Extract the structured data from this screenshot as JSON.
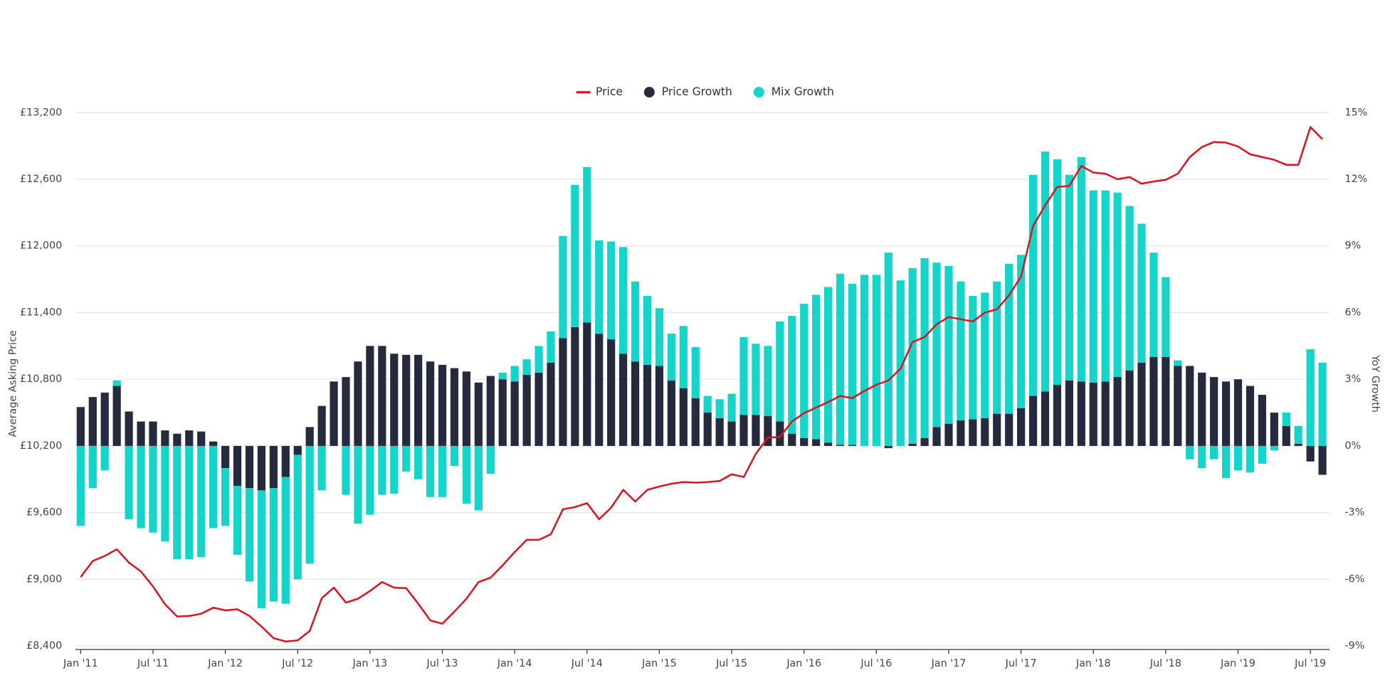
{
  "chart_data": {
    "type": "bar",
    "stacked": true,
    "y_label": "Average Asking Price",
    "y2_label": "YoY Growth",
    "grid": true,
    "legend": "top",
    "categories": [
      "Jan '11",
      null,
      null,
      null,
      null,
      null,
      "Jul '11",
      null,
      null,
      null,
      null,
      null,
      "Jan '12",
      null,
      null,
      null,
      null,
      null,
      "Jul '12",
      null,
      null,
      null,
      null,
      null,
      "Jan '13",
      null,
      null,
      null,
      null,
      null,
      "Jul '13",
      null,
      null,
      null,
      null,
      null,
      "Jan '14",
      null,
      null,
      null,
      null,
      null,
      "Jul '14",
      null,
      null,
      null,
      null,
      null,
      "Jan '15",
      null,
      null,
      null,
      null,
      null,
      "Jul '15",
      null,
      null,
      null,
      null,
      null,
      "Jan '16",
      null,
      null,
      null,
      null,
      null,
      "Jul '16",
      null,
      null,
      null,
      null,
      null,
      "Jan '17",
      null,
      null,
      null,
      null,
      null,
      "Jul '17",
      null,
      null,
      null,
      null,
      null,
      "Jan '18",
      null,
      null,
      null,
      null,
      null,
      "Jul '18",
      null,
      null,
      null,
      null,
      null,
      "Jan '19",
      null,
      null,
      null,
      null,
      null,
      "Jul '19",
      null
    ],
    "series": [
      {
        "name": "Price",
        "type": "line",
        "axis": "y",
        "color": "#e0101e",
        "values": [
          9020,
          9165,
          9210,
          9270,
          9150,
          9070,
          8935,
          8775,
          8665,
          8670,
          8690,
          8745,
          8720,
          8730,
          8670,
          8575,
          8470,
          8440,
          8450,
          8535,
          8830,
          8925,
          8790,
          8825,
          8895,
          8975,
          8925,
          8920,
          8780,
          8630,
          8600,
          8710,
          8825,
          8975,
          9015,
          9125,
          9245,
          9355,
          9355,
          9405,
          9630,
          9650,
          9685,
          9540,
          9645,
          9805,
          9700,
          9805,
          9835,
          9860,
          9875,
          9870,
          9875,
          9885,
          9945,
          9920,
          10130,
          10275,
          10280,
          10420,
          10495,
          10545,
          10595,
          10650,
          10630,
          10695,
          10750,
          10790,
          10895,
          11135,
          11180,
          11295,
          11360,
          11340,
          11320,
          11400,
          11430,
          11555,
          11725,
          12180,
          12365,
          12530,
          12540,
          12720,
          12660,
          12650,
          12600,
          12620,
          12560,
          12580,
          12595,
          12650,
          12800,
          12890,
          12935,
          12930,
          12895,
          12825,
          12800,
          12775,
          12730,
          12730,
          13070,
          12960
        ]
      },
      {
        "name": "Price Growth",
        "type": "bar",
        "axis": "y2",
        "color": "#252b3d",
        "values": [
          1.75,
          2.2,
          2.4,
          2.7,
          1.55,
          1.1,
          1.1,
          0.7,
          0.55,
          0.7,
          0.65,
          0.2,
          -1.0,
          -1.8,
          -1.9,
          -2.0,
          -1.9,
          -1.4,
          -0.4,
          0.85,
          1.8,
          2.9,
          3.1,
          3.8,
          4.5,
          4.5,
          4.15,
          4.1,
          4.1,
          3.8,
          3.65,
          3.5,
          3.35,
          2.85,
          3.15,
          3.0,
          2.9,
          3.2,
          3.3,
          3.75,
          4.85,
          5.35,
          5.55,
          5.05,
          4.8,
          4.15,
          3.8,
          3.65,
          3.6,
          2.95,
          2.6,
          2.15,
          1.5,
          1.25,
          1.1,
          1.4,
          1.4,
          1.35,
          1.1,
          0.55,
          0.35,
          0.3,
          0.15,
          0.05,
          0.05,
          0.0,
          0.0,
          -0.1,
          0.0,
          0.1,
          0.35,
          0.85,
          1.0,
          1.15,
          1.2,
          1.25,
          1.45,
          1.45,
          1.7,
          2.25,
          2.45,
          2.75,
          2.95,
          2.9,
          2.85,
          2.9,
          3.1,
          3.4,
          3.75,
          4.0,
          4.0,
          3.6,
          3.6,
          3.3,
          3.1,
          2.9,
          3.0,
          2.7,
          2.3,
          1.5,
          0.9,
          0.1,
          -0.7,
          -1.3
        ]
      },
      {
        "name": "Mix Growth",
        "type": "bar",
        "axis": "y2",
        "color": "#12d6c9",
        "values": [
          -3.6,
          -1.9,
          -1.1,
          0.25,
          -3.3,
          -3.7,
          -3.9,
          -4.3,
          -5.1,
          -5.1,
          -5.0,
          -3.7,
          -2.6,
          -3.1,
          -4.2,
          -5.3,
          -5.1,
          -5.7,
          -5.6,
          -5.3,
          -2.0,
          0,
          -2.2,
          -3.5,
          -3.1,
          -2.2,
          -2.15,
          -1.15,
          -1.5,
          -2.3,
          -2.3,
          -0.9,
          -2.6,
          -2.9,
          -1.25,
          0.3,
          0.7,
          0.7,
          1.2,
          1.4,
          4.6,
          6.4,
          7.0,
          4.2,
          4.4,
          4.8,
          3.6,
          3.1,
          2.6,
          2.1,
          2.8,
          2.3,
          0.75,
          0.85,
          1.25,
          3.5,
          3.2,
          3.15,
          4.5,
          5.3,
          6.05,
          6.5,
          7.0,
          7.7,
          7.25,
          7.7,
          7.7,
          8.7,
          7.45,
          7.9,
          8.1,
          7.4,
          7.1,
          6.25,
          5.55,
          5.65,
          5.95,
          6.75,
          6.9,
          9.95,
          10.8,
          10.15,
          9.25,
          10.1,
          8.65,
          8.6,
          8.3,
          7.4,
          6.25,
          4.7,
          3.6,
          0.25,
          -0.6,
          -1.0,
          -0.6,
          -1.45,
          -1.1,
          -1.2,
          -0.8,
          -0.2,
          0.6,
          0.8,
          4.35,
          3.75
        ]
      }
    ],
    "ylim": [
      8400,
      13200
    ],
    "yticks": [
      {
        "value": 8400,
        "label": "£8,400"
      },
      {
        "value": 9000,
        "label": "£9,000"
      },
      {
        "value": 9600,
        "label": "£9,600"
      },
      {
        "value": 10200,
        "label": "£10,200"
      },
      {
        "value": 10800,
        "label": "£10,800"
      },
      {
        "value": 11400,
        "label": "£11,400"
      },
      {
        "value": 12000,
        "label": "£12,000"
      },
      {
        "value": 12600,
        "label": "£12,600"
      },
      {
        "value": 13200,
        "label": "£13,200"
      }
    ],
    "y2lim": [
      -9,
      15
    ],
    "y2ticks": [
      {
        "value": -9,
        "label": "-9%"
      },
      {
        "value": -6,
        "label": "-6%"
      },
      {
        "value": -3,
        "label": "-3%"
      },
      {
        "value": 0,
        "label": "0%"
      },
      {
        "value": 3,
        "label": "3%"
      },
      {
        "value": 6,
        "label": "6%"
      },
      {
        "value": 9,
        "label": "9%"
      },
      {
        "value": 12,
        "label": "12%"
      },
      {
        "value": 15,
        "label": "15%"
      }
    ]
  }
}
